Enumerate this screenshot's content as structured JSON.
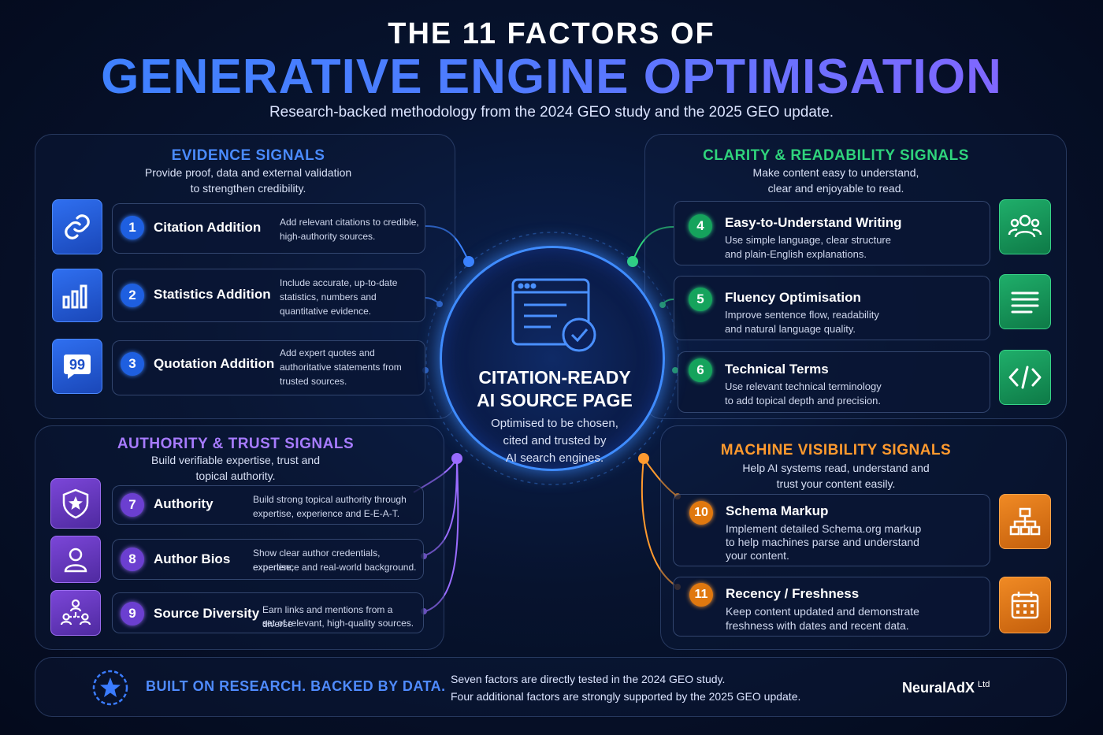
{
  "header": {
    "title_top": "THE 11 FACTORS OF",
    "title_main": "GENERATIVE ENGINE OPTIMISATION",
    "subtitle": "Research-backed methodology from the 2024 GEO study and the 2025 GEO update."
  },
  "center": {
    "title_line1": "CITATION-READY",
    "title_line2": "AI SOURCE PAGE",
    "desc_line1": "Optimised to be chosen,",
    "desc_line2": "cited and trusted by",
    "desc_line3": "AI search engines.",
    "icon": "web-page-check-icon"
  },
  "sections": {
    "evidence": {
      "title": "EVIDENCE SIGNALS",
      "desc_line1": "Provide proof, data and external validation",
      "desc_line2": "to strengthen credibility.",
      "color": "#3b82ff",
      "factors": [
        {
          "num": "1",
          "name": "Citation Addition",
          "desc_line1": "Add relevant citations to credible,",
          "desc_line2": "high-authority sources.",
          "desc_line3": "",
          "icon": "link-icon"
        },
        {
          "num": "2",
          "name": "Statistics Addition",
          "desc_line1": "Include accurate, up-to-date",
          "desc_line2": "statistics, numbers and",
          "desc_line3": "quantitative evidence.",
          "icon": "bar-chart-icon"
        },
        {
          "num": "3",
          "name": "Quotation Addition",
          "desc_line1": "Add expert quotes and",
          "desc_line2": "authoritative statements from",
          "desc_line3": "trusted sources.",
          "icon": "quote-bubble-icon"
        }
      ]
    },
    "clarity": {
      "title": "CLARITY & READABILITY SIGNALS",
      "desc_line1": "Make content easy to understand,",
      "desc_line2": "clear and enjoyable to read.",
      "color": "#2fd47c",
      "factors": [
        {
          "num": "4",
          "name": "Easy-to-Understand Writing",
          "desc_line1": "Use simple language, clear structure",
          "desc_line2": "and plain-English explanations.",
          "icon": "users-group-icon"
        },
        {
          "num": "5",
          "name": "Fluency Optimisation",
          "desc_line1": "Improve sentence flow, readability",
          "desc_line2": "and natural language quality.",
          "icon": "text-lines-icon"
        },
        {
          "num": "6",
          "name": "Technical Terms",
          "desc_line1": "Use relevant technical terminology",
          "desc_line2": "to add topical depth and precision.",
          "icon": "code-icon"
        }
      ]
    },
    "authority": {
      "title": "AUTHORITY & TRUST SIGNALS",
      "desc_line1": "Build verifiable expertise, trust and",
      "desc_line2": "topical authority.",
      "color": "#9a6cff",
      "factors": [
        {
          "num": "7",
          "name": "Authority",
          "desc_line1": "Build strong topical authority through",
          "desc_line2": "expertise, experience and E-E-A-T.",
          "icon": "shield-star-icon"
        },
        {
          "num": "8",
          "name": "Author Bios",
          "desc_line1": "Show clear author credentials, expertise,",
          "desc_line2": "experience and real-world background.",
          "icon": "person-icon"
        },
        {
          "num": "9",
          "name": "Source Diversity",
          "desc_line1": "Earn links and mentions from a diverse",
          "desc_line2": "set of relevant, high-quality sources.",
          "icon": "network-people-icon"
        }
      ]
    },
    "machine": {
      "title": "MACHINE VISIBILITY SIGNALS",
      "desc_line1": "Help AI systems read, understand and",
      "desc_line2": "trust your content easily.",
      "color": "#ff9a2e",
      "factors": [
        {
          "num": "10",
          "name": "Schema Markup",
          "desc_line1": "Implement detailed Schema.org markup",
          "desc_line2": "to help machines parse and understand",
          "desc_line3": "your content.",
          "icon": "sitemap-icon"
        },
        {
          "num": "11",
          "name": "Recency / Freshness",
          "desc_line1": "Keep content updated and demonstrate",
          "desc_line2": "freshness with dates and recent data.",
          "desc_line3": "",
          "icon": "calendar-icon"
        }
      ]
    }
  },
  "footer": {
    "tagline": "BUILT ON RESEARCH. BACKED BY DATA.",
    "line1": "Seven factors are directly tested in the 2024 GEO study.",
    "line2": "Four additional factors are strongly supported by the 2025 GEO update.",
    "brand": "NeuralAdX",
    "brand_suffix": "Ltd",
    "icon": "star-badge-icon"
  }
}
